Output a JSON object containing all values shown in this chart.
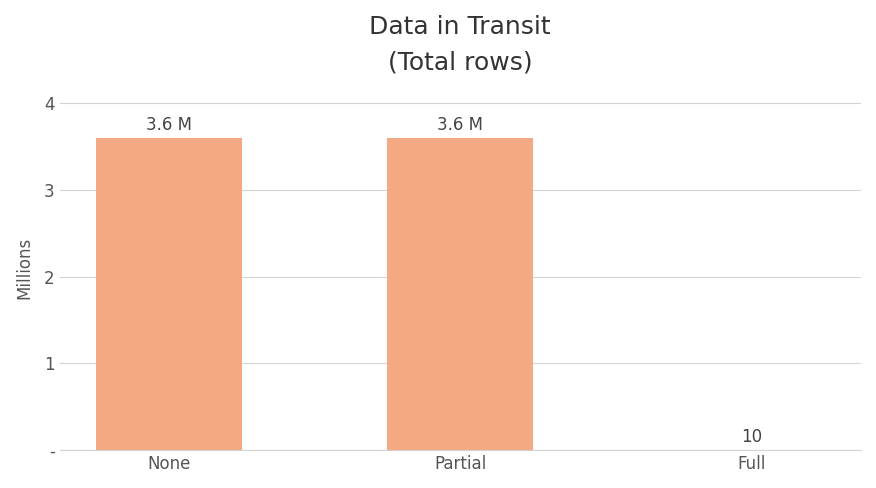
{
  "title": "Data in Transit",
  "subtitle": "(Total rows)",
  "categories": [
    "None",
    "Partial",
    "Full"
  ],
  "values": [
    3600000,
    3600000,
    10
  ],
  "bar_color": "#F4A982",
  "ylabel": "Millions",
  "ylim": [
    0,
    4200000
  ],
  "yticks": [
    0,
    1000000,
    2000000,
    3000000,
    4000000
  ],
  "ytick_labels": [
    "-",
    "1",
    "2",
    "3",
    "4"
  ],
  "bar_labels": [
    "3.6 M",
    "3.6 M",
    "10"
  ],
  "title_fontsize": 18,
  "subtitle_fontsize": 13,
  "label_fontsize": 12,
  "tick_fontsize": 12,
  "ylabel_fontsize": 12,
  "background_color": "#FFFFFF",
  "grid_color": "#D3D3D3"
}
